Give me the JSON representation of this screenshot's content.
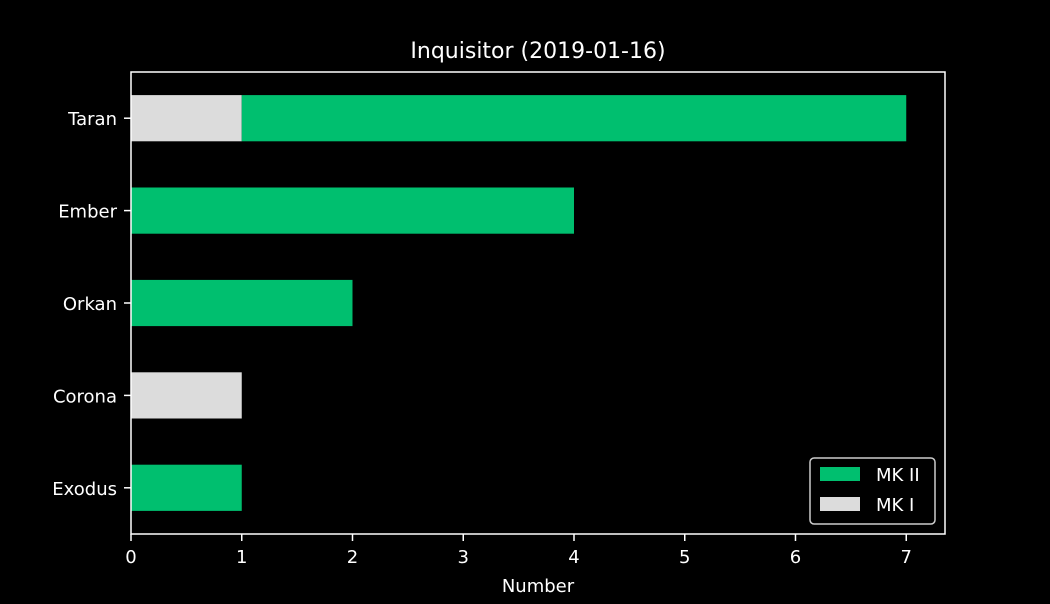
{
  "chart_data": {
    "type": "bar",
    "orientation": "horizontal",
    "stacked": true,
    "title": "Inquisitor (2019-01-16)",
    "xlabel": "Number",
    "ylabel": "",
    "xlim": [
      0,
      7.35
    ],
    "xticks": [
      0,
      1,
      2,
      3,
      4,
      5,
      6,
      7
    ],
    "categories": [
      "Taran",
      "Ember",
      "Orkan",
      "Corona",
      "Exodus"
    ],
    "series": [
      {
        "name": "MK I",
        "color": "#dcdcdc",
        "values": [
          1,
          0,
          0,
          1,
          0
        ]
      },
      {
        "name": "MK II",
        "color": "#00bf6f",
        "values": [
          6,
          4,
          2,
          0,
          1
        ]
      }
    ],
    "legend": {
      "placement": "bottom-right",
      "order": [
        "MK II",
        "MK I"
      ]
    },
    "grid": false,
    "background": "#000000",
    "foreground": "#ffffff"
  }
}
